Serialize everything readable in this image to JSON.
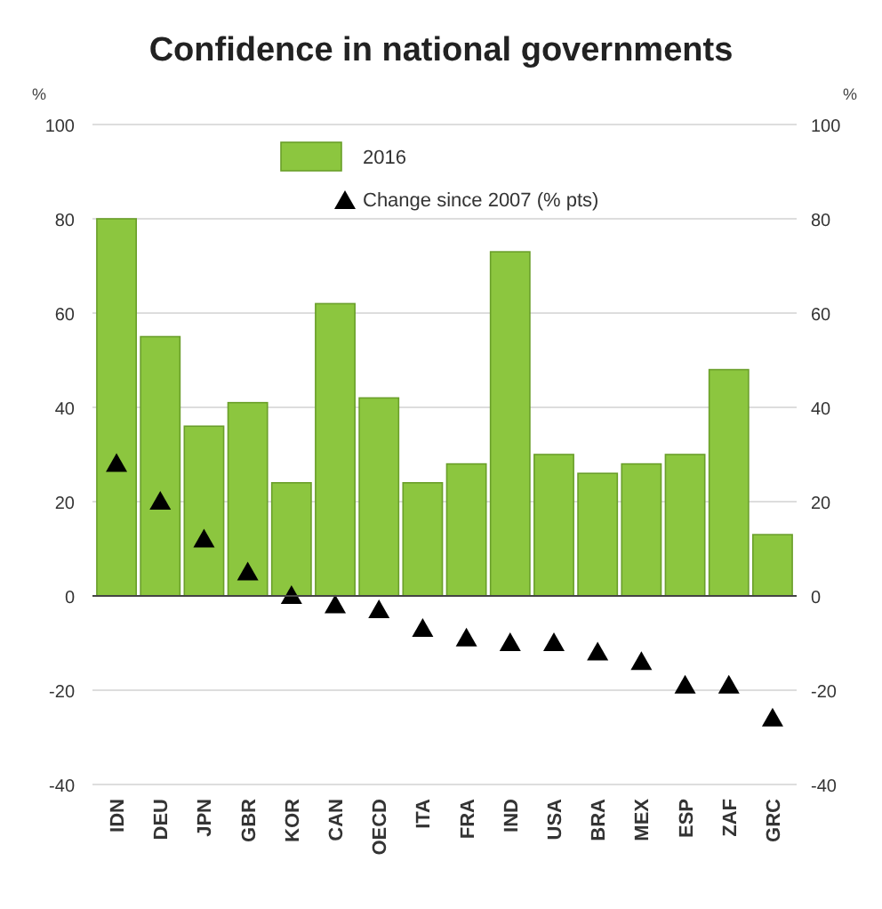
{
  "chart_data": {
    "type": "bar",
    "title": "Confidence in national governments",
    "ylabel": "%",
    "y2label": "%",
    "categories": [
      "IDN",
      "DEU",
      "JPN",
      "GBR",
      "KOR",
      "CAN",
      "OECD",
      "ITA",
      "FRA",
      "IND",
      "USA",
      "BRA",
      "MEX",
      "ESP",
      "ZAF",
      "GRC"
    ],
    "series": [
      {
        "name": "2016",
        "color": "#8cc63f",
        "values": [
          80,
          55,
          36,
          41,
          24,
          62,
          42,
          24,
          28,
          73,
          30,
          26,
          28,
          30,
          48,
          13
        ]
      },
      {
        "name": "Change since 2007 (% pts)",
        "type": "scatter",
        "marker": "triangle",
        "color": "#000000",
        "x": [
          "IDN",
          "DEU",
          "JPN",
          "GBR",
          "KOR",
          "CAN",
          "OECD",
          "ITA",
          "FRA",
          "IND",
          "USA",
          "BRA",
          "MEX",
          "ESP",
          "ZAF",
          "GRC"
        ],
        "values": [
          28,
          20,
          12,
          5,
          0,
          -2,
          -3,
          -7,
          -9,
          -10,
          -10,
          -12,
          -14,
          -19,
          -19,
          -26
        ]
      }
    ],
    "ylim": [
      -40,
      100
    ],
    "yticks": [
      -40,
      -20,
      0,
      20,
      40,
      60,
      80,
      100
    ],
    "y2lim": [
      -40,
      100
    ],
    "y2ticks": [
      -40,
      -20,
      0,
      20,
      40,
      60,
      80,
      100
    ],
    "grid": "y",
    "legend": "top"
  }
}
